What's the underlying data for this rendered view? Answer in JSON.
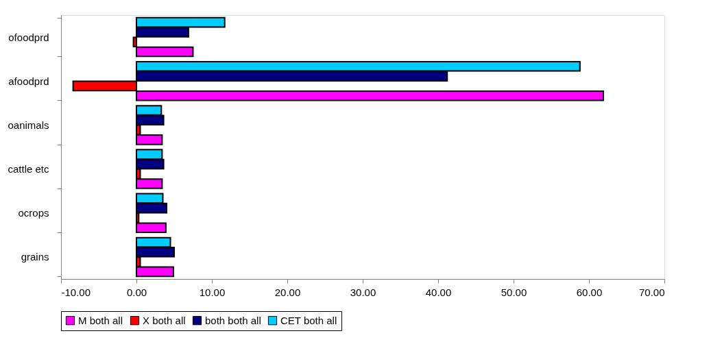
{
  "chart_data": {
    "type": "bar",
    "orientation": "horizontal",
    "categories": [
      "ofoodprd",
      "afoodprd",
      "oanimals",
      "cattle etc",
      "ocrops",
      "grains"
    ],
    "series": [
      {
        "name": "M both all",
        "color": "#ff00ff",
        "values": [
          7.5,
          61.9,
          3.4,
          3.4,
          3.9,
          4.9
        ]
      },
      {
        "name": "X both all",
        "color": "#ff0000",
        "values": [
          -0.4,
          -8.4,
          0.5,
          0.5,
          0.3,
          0.5
        ]
      },
      {
        "name": "both both all",
        "color": "#000080",
        "values": [
          6.9,
          41.2,
          3.6,
          3.6,
          4.0,
          5.0
        ]
      },
      {
        "name": "CET both all",
        "color": "#00ccff",
        "values": [
          11.7,
          58.8,
          3.3,
          3.4,
          3.5,
          4.5
        ]
      }
    ],
    "xlim": [
      -10,
      70
    ],
    "xticks": [
      {
        "value": -10,
        "label": "-10.00"
      },
      {
        "value": 0,
        "label": "0.00"
      },
      {
        "value": 10,
        "label": "10.00"
      },
      {
        "value": 20,
        "label": "20.00"
      },
      {
        "value": 30,
        "label": "30.00"
      },
      {
        "value": 40,
        "label": "40.00"
      },
      {
        "value": 50,
        "label": "50.00"
      },
      {
        "value": 60,
        "label": "60.00"
      },
      {
        "value": 70,
        "label": "70.00"
      }
    ],
    "grid": false,
    "legend": "bottom"
  }
}
